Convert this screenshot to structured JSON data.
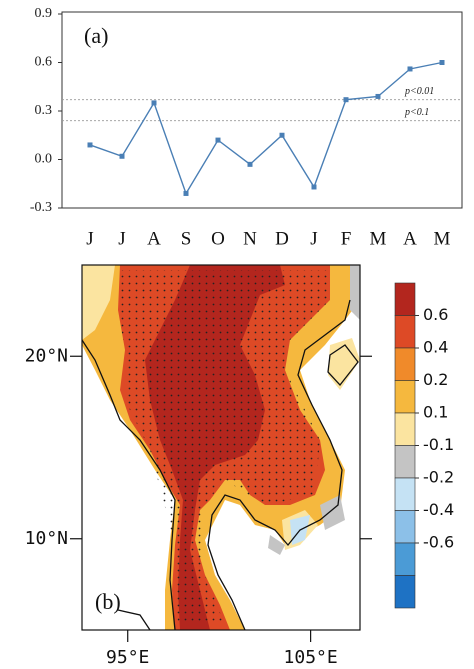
{
  "chart_data": [
    {
      "type": "line",
      "panel_label": "(a)",
      "categories": [
        "J",
        "J",
        "A",
        "S",
        "O",
        "N",
        "D",
        "J",
        "F",
        "M",
        "A",
        "M"
      ],
      "series": [
        {
          "color": "#4a7fb5",
          "values": [
            0.09,
            0.02,
            0.35,
            -0.21,
            0.12,
            -0.03,
            0.15,
            -0.17,
            0.37,
            0.39,
            0.56,
            0.6
          ]
        }
      ],
      "ylim": [
        -0.3,
        0.9
      ],
      "yticks": [
        -0.3,
        {
          "value": 0,
          "label": "0.0"
        },
        0.3,
        0.6,
        0.9
      ],
      "reference_lines": [
        {
          "value": 0.37,
          "label": "p<0.01"
        },
        {
          "value": 0.24,
          "label": "p<0.1"
        }
      ]
    },
    {
      "type": "map",
      "panel_label": "(b)",
      "xlim": [
        92.5,
        107.7
      ],
      "ylim": [
        5,
        25
      ],
      "xticks": [
        {
          "value": 95,
          "label": "95°E"
        },
        {
          "value": 105,
          "label": "105°E"
        }
      ],
      "yticks": [
        {
          "value": 10,
          "label": "10°N"
        },
        {
          "value": 20,
          "label": "20°N"
        }
      ],
      "colorbar": {
        "ticks": [
          0.6,
          0.4,
          0.2,
          0.1,
          -0.1,
          -0.2,
          -0.4,
          -0.6
        ],
        "colors": [
          "#b3261e",
          "#dd4a26",
          "#f08a2a",
          "#f5b83e",
          "#fbe4a0",
          "#c4c4c4",
          "#c5e2f4",
          "#8cc0e8",
          "#4b9bd6",
          "#1e72c4"
        ]
      }
    }
  ]
}
